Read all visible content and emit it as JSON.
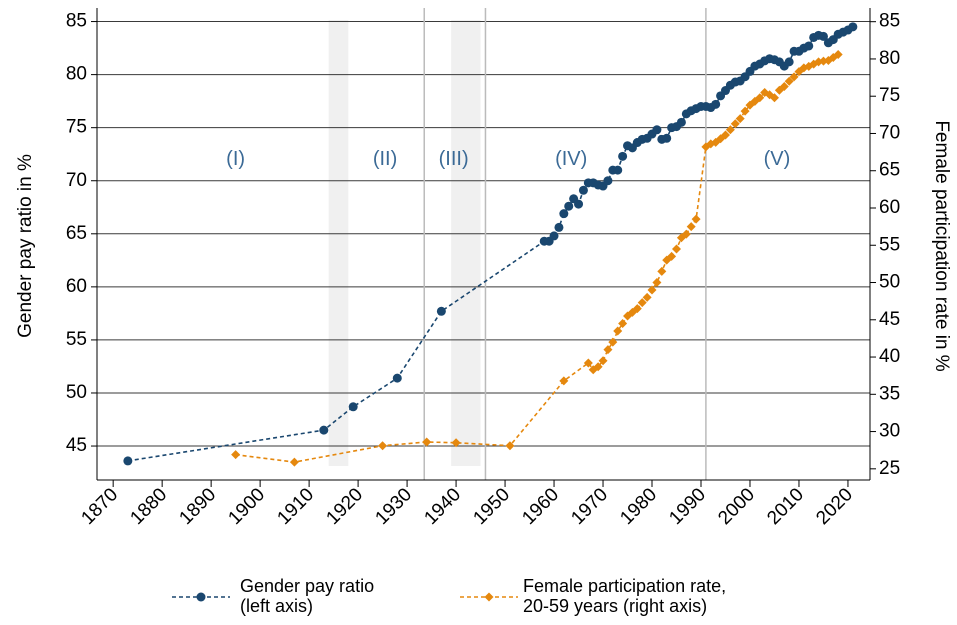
{
  "chart_data": {
    "type": "line",
    "y_label": "Gender pay ratio in %",
    "y2_label": "Female participation rate in %",
    "xlim": [
      1866.7,
      2024.5
    ],
    "xticks": [
      1870,
      1880,
      1890,
      1900,
      1910,
      1920,
      1930,
      1940,
      1950,
      1960,
      1970,
      1980,
      1990,
      2000,
      2010,
      2020
    ],
    "ylim": [
      41.8,
      85.9
    ],
    "yticks": [
      45,
      50,
      55,
      60,
      65,
      70,
      75,
      80,
      85
    ],
    "y2lim": [
      23.5,
      86.3
    ],
    "y2ticks": [
      25,
      30,
      35,
      40,
      45,
      50,
      55,
      60,
      65,
      70,
      75,
      80,
      85
    ],
    "grid": true,
    "shaded_ranges": [
      [
        1914,
        1918
      ],
      [
        1939,
        1945
      ]
    ],
    "vlines": [
      1933.5,
      1946,
      1991
    ],
    "annotations": [
      {
        "text": "(I)",
        "x": 1895,
        "y": 72
      },
      {
        "text": "(II)",
        "x": 1925.5,
        "y": 72
      },
      {
        "text": "(III)",
        "x": 1939.5,
        "y": 72
      },
      {
        "text": "(IV)",
        "x": 1963.5,
        "y": 72
      },
      {
        "text": "(V)",
        "x": 2005.5,
        "y": 72
      }
    ],
    "series": [
      {
        "name": "Gender pay ratio\n(left axis)",
        "color": "#1a476f",
        "marker": "circle",
        "axis": "y",
        "x": [
          1873,
          1913,
          1919,
          1928,
          1937,
          1958,
          1959,
          1960,
          1961,
          1962,
          1963,
          1964,
          1965,
          1966,
          1967,
          1968,
          1969,
          1970,
          1971,
          1972,
          1973,
          1974,
          1975,
          1976,
          1977,
          1978,
          1979,
          1980,
          1981,
          1982,
          1983,
          1984,
          1985,
          1986,
          1987,
          1988,
          1989,
          1990,
          1991,
          1992,
          1993,
          1994,
          1995,
          1996,
          1997,
          1998,
          1999,
          2000,
          2001,
          2002,
          2003,
          2004,
          2005,
          2006,
          2007,
          2008,
          2009,
          2010,
          2011,
          2012,
          2013,
          2014,
          2015,
          2016,
          2017,
          2018,
          2019,
          2020,
          2021
        ],
        "values": [
          43.6,
          46.5,
          48.7,
          51.4,
          57.7,
          64.3,
          64.3,
          64.8,
          65.6,
          66.9,
          67.6,
          68.3,
          67.8,
          69.1,
          69.8,
          69.8,
          69.6,
          69.5,
          70.0,
          71.0,
          71.0,
          72.3,
          73.3,
          73.1,
          73.6,
          73.9,
          74.0,
          74.4,
          74.8,
          73.9,
          74.0,
          75.0,
          75.1,
          75.5,
          76.3,
          76.6,
          76.8,
          77.0,
          77.0,
          76.9,
          77.2,
          78.0,
          78.5,
          79.0,
          79.3,
          79.4,
          79.8,
          80.3,
          80.8,
          81.0,
          81.3,
          81.5,
          81.4,
          81.2,
          80.8,
          81.2,
          82.2,
          82.2,
          82.5,
          82.7,
          83.5,
          83.7,
          83.6,
          83.0,
          83.3,
          83.8,
          84.0,
          84.2,
          84.5
        ]
      },
      {
        "name": "Female participation rate,\n20-59 years (right axis)",
        "color": "#e5880e",
        "marker": "diamond",
        "axis": "y2",
        "x": [
          1895,
          1907,
          1925,
          1934,
          1940,
          1951,
          1962,
          1967,
          1968,
          1969,
          1970,
          1971,
          1972,
          1973,
          1974,
          1975,
          1976,
          1977,
          1978,
          1979,
          1980,
          1981,
          1982,
          1983,
          1984,
          1985,
          1986,
          1987,
          1988,
          1989,
          1991,
          1992,
          1993,
          1994,
          1995,
          1996,
          1997,
          1998,
          1999,
          2000,
          2001,
          2002,
          2003,
          2004,
          2005,
          2006,
          2007,
          2008,
          2009,
          2010,
          2011,
          2012,
          2013,
          2014,
          2015,
          2016,
          2017,
          2018
        ],
        "values": [
          26.9,
          25.9,
          28.1,
          28.6,
          28.5,
          28.1,
          36.8,
          39.2,
          38.3,
          38.7,
          39.5,
          41.0,
          42.0,
          43.5,
          44.5,
          45.5,
          46.0,
          46.5,
          47.3,
          48.0,
          49.0,
          50.0,
          51.5,
          53.0,
          53.5,
          54.5,
          56.0,
          56.5,
          57.5,
          58.5,
          68.2,
          68.6,
          68.8,
          69.3,
          69.8,
          70.5,
          71.3,
          72.0,
          73.0,
          73.8,
          74.3,
          74.8,
          75.5,
          75.2,
          74.8,
          75.8,
          76.3,
          77.0,
          77.6,
          78.3,
          78.8,
          79.0,
          79.3,
          79.6,
          79.7,
          79.8,
          80.2,
          80.6
        ]
      }
    ]
  }
}
